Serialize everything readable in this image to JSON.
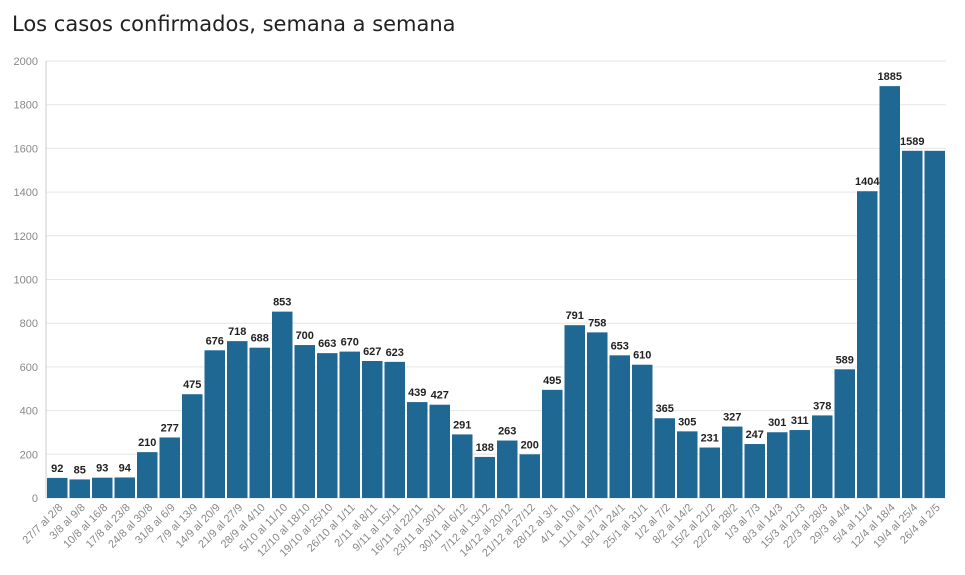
{
  "chart_data": {
    "type": "bar",
    "title": "Los casos confirmados, semana a semana",
    "xlabel": "",
    "ylabel": "",
    "ylim": [
      0,
      2000
    ],
    "yticks": [
      0,
      200,
      400,
      600,
      800,
      1000,
      1200,
      1400,
      1600,
      1800,
      2000
    ],
    "grid": true,
    "bar_color": "#1f6894",
    "categories": [
      "27/7 al 2/8",
      "3/8 al 9/8",
      "10/8 al 16/8",
      "17/8 al 23/8",
      "24/8 al 30/8",
      "31/8 al 6/9",
      "7/9 al 13/9",
      "14/9 al 20/9",
      "21/9 al 27/9",
      "28/9 al 4/10",
      "5/10 al 11/10",
      "12/10 al 18/10",
      "19/10 al 25/10",
      "26/10 al 1/11",
      "2/11 al 8/11",
      "9/11 al 15/11",
      "16/11 al 22/11",
      "23/11 al 30/11",
      "30/11 al 6/12",
      "7/12 al 13/12",
      "14/12 al 20/12",
      "21/12 al 27/12",
      "28/12 al 3/1",
      "4/1 al 10/1",
      "11/1 al 17/1",
      "18/1 al 24/1",
      "25/1 al 31/1",
      "1/2 al 7/2",
      "8/2 al 14/2",
      "15/2 al 21/2",
      "22/2 al 28/2",
      "1/3 al 7/3",
      "8/3 al 14/3",
      "15/3 al 21/3",
      "22/3 al 28/3",
      "29/3 al 4/4",
      "5/4 al 11/4",
      "12/4 al 18/4",
      "19/4 al 25/4",
      "26/4 al 2/5"
    ],
    "values": [
      92,
      85,
      93,
      94,
      210,
      277,
      475,
      676,
      718,
      688,
      853,
      700,
      663,
      670,
      627,
      623,
      439,
      427,
      291,
      188,
      263,
      200,
      495,
      791,
      758,
      653,
      610,
      365,
      305,
      231,
      327,
      247,
      301,
      311,
      378,
      589,
      1404,
      1885,
      1589,
      1589
    ],
    "labels": [
      "92",
      "85",
      "93",
      "94",
      "210",
      "277",
      "475",
      "676",
      "718",
      "688",
      "853",
      "700",
      "663",
      "670",
      "627",
      "623",
      "439",
      "427",
      "291",
      "188",
      "263",
      "200",
      "495",
      "791",
      "758",
      "653",
      "610",
      "365",
      "305",
      "231",
      "327",
      "247",
      "301",
      "311",
      "378",
      "589",
      "1404",
      "1885",
      "1589",
      ""
    ]
  }
}
